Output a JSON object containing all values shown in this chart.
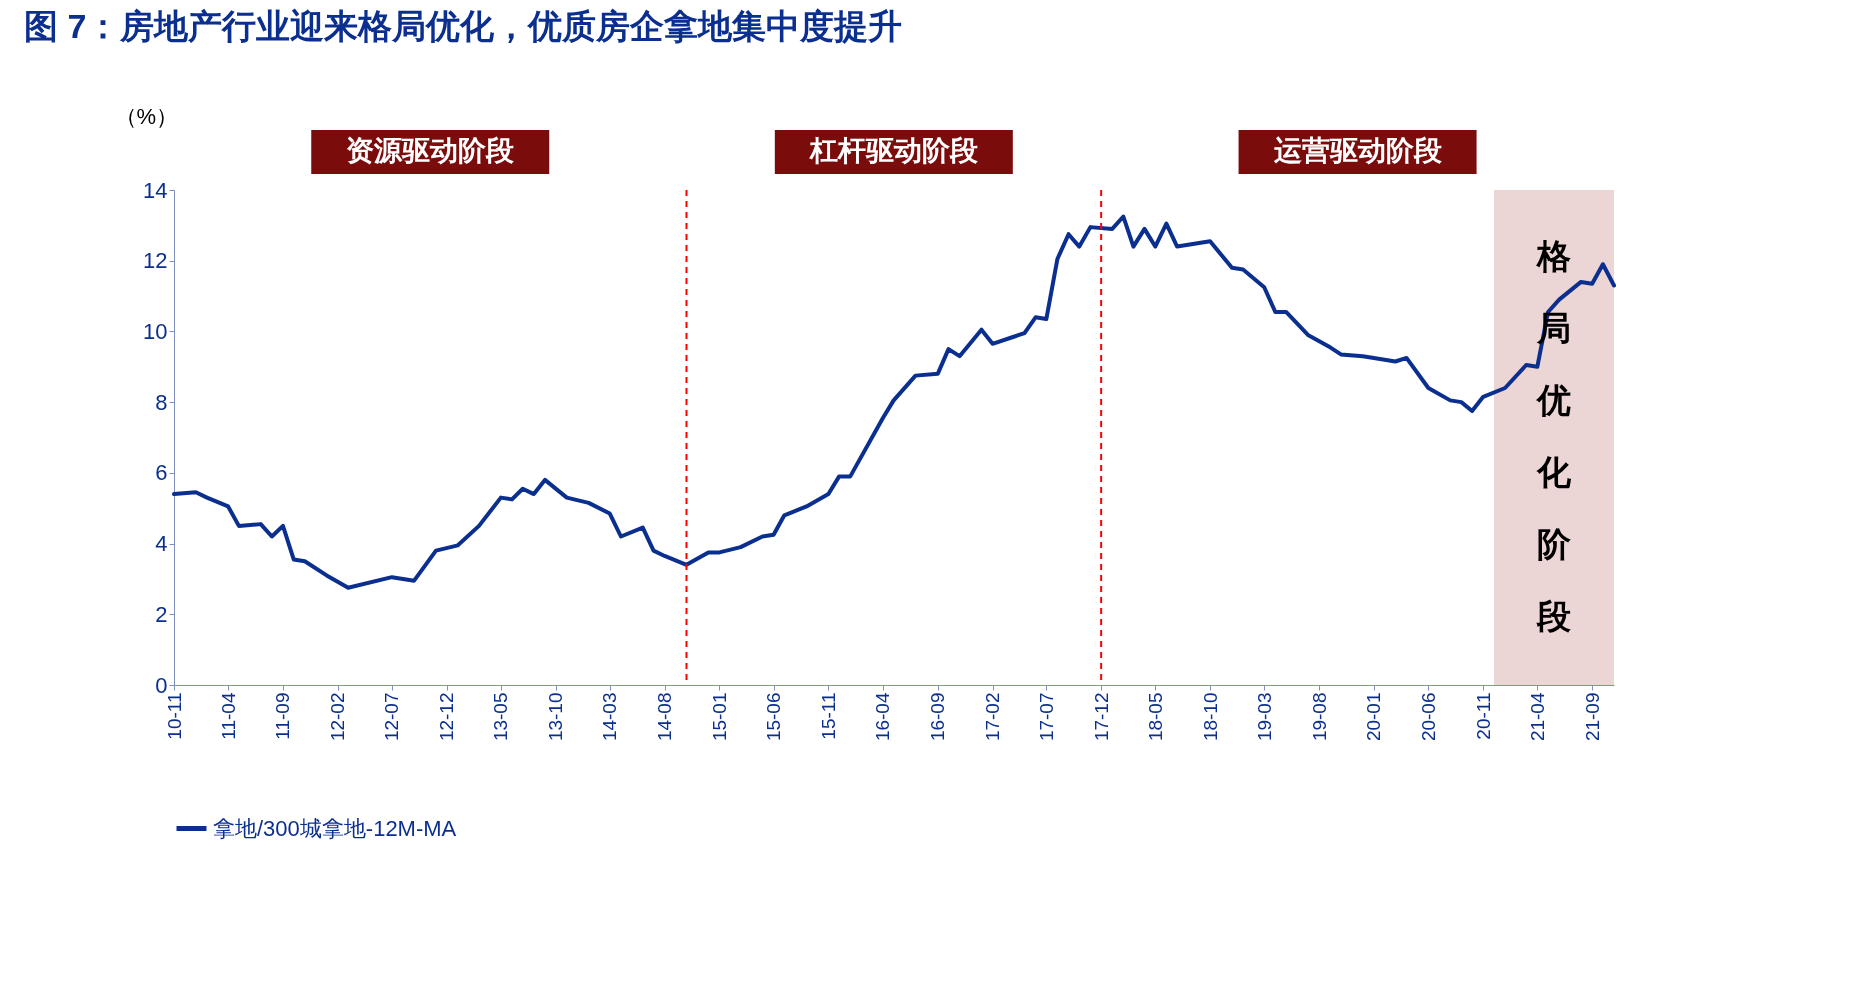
{
  "chart_data": {
    "type": "line",
    "title": "图 7：房地产行业迎来格局优化，优质房企拿地集中度提升",
    "ylabel": "（%）",
    "x": [
      "2010-11",
      "2011-01",
      "2011-02",
      "2011-04",
      "2011-05",
      "2011-07",
      "2011-08",
      "2011-09",
      "2011-10",
      "2011-11",
      "2012-01",
      "2012-03",
      "2012-07",
      "2012-08",
      "2012-09",
      "2012-11",
      "2013-01",
      "2013-03",
      "2013-05",
      "2013-06",
      "2013-07",
      "2013-08",
      "2013-09",
      "2013-11",
      "2014-01",
      "2014-03",
      "2014-04",
      "2014-06",
      "2014-07",
      "2014-08",
      "2014-10",
      "2014-12",
      "2015-01",
      "2015-03",
      "2015-05",
      "2015-06",
      "2015-07",
      "2015-09",
      "2015-11",
      "2015-12",
      "2016-01",
      "2016-04",
      "2016-05",
      "2016-07",
      "2016-09",
      "2016-10",
      "2016-11",
      "2017-01",
      "2017-02",
      "2017-04",
      "2017-05",
      "2017-06",
      "2017-07",
      "2017-08",
      "2017-09",
      "2017-10",
      "2017-11",
      "2018-01",
      "2018-02",
      "2018-03",
      "2018-04",
      "2018-05",
      "2018-06",
      "2018-07",
      "2018-10",
      "2018-12",
      "2019-01",
      "2019-03",
      "2019-04",
      "2019-05",
      "2019-07",
      "2019-09",
      "2019-10",
      "2019-12",
      "2020-01",
      "2020-03",
      "2020-04",
      "2020-06",
      "2020-08",
      "2020-09",
      "2020-10",
      "2020-11",
      "2021-01",
      "2021-03",
      "2021-04",
      "2021-05",
      "2021-06",
      "2021-08",
      "2021-09",
      "2021-10",
      "2021-11"
    ],
    "series": [
      {
        "name": "拿地/300城拿地-12M-MA",
        "color": "#0b2f8f",
        "values": [
          5.4,
          5.45,
          5.3,
          5.05,
          4.5,
          4.55,
          4.2,
          4.5,
          3.55,
          3.5,
          3.1,
          2.75,
          3.05,
          3.0,
          2.95,
          3.8,
          3.95,
          4.5,
          5.3,
          5.25,
          5.55,
          5.4,
          5.8,
          5.3,
          5.15,
          4.85,
          4.2,
          4.45,
          3.8,
          3.65,
          3.4,
          3.75,
          3.75,
          3.9,
          4.2,
          4.25,
          4.8,
          5.05,
          5.4,
          5.9,
          5.9,
          7.55,
          8.05,
          8.75,
          8.8,
          9.5,
          9.3,
          10.05,
          9.65,
          9.85,
          9.95,
          10.4,
          10.35,
          12.05,
          12.75,
          12.4,
          12.95,
          12.9,
          13.25,
          12.4,
          12.9,
          12.4,
          13.05,
          12.4,
          12.55,
          11.8,
          11.75,
          11.25,
          10.55,
          10.55,
          9.9,
          9.55,
          9.35,
          9.3,
          9.25,
          9.15,
          9.25,
          8.4,
          8.05,
          8.0,
          7.75,
          8.15,
          8.4,
          9.05,
          9.0,
          10.55,
          10.9,
          11.4,
          11.35,
          11.9,
          11.3
        ]
      }
    ],
    "xlim": [
      "2010-11",
      "2021-11"
    ],
    "xticks": [
      {
        "value": "2010-11",
        "label": "10-11"
      },
      {
        "value": "2011-04",
        "label": "11-04"
      },
      {
        "value": "2011-09",
        "label": "11-09"
      },
      {
        "value": "2012-02",
        "label": "12-02"
      },
      {
        "value": "2012-07",
        "label": "12-07"
      },
      {
        "value": "2012-12",
        "label": "12-12"
      },
      {
        "value": "2013-05",
        "label": "13-05"
      },
      {
        "value": "2013-10",
        "label": "13-10"
      },
      {
        "value": "2014-03",
        "label": "14-03"
      },
      {
        "value": "2014-08",
        "label": "14-08"
      },
      {
        "value": "2015-01",
        "label": "15-01"
      },
      {
        "value": "2015-06",
        "label": "15-06"
      },
      {
        "value": "2015-11",
        "label": "15-11"
      },
      {
        "value": "2016-04",
        "label": "16-04"
      },
      {
        "value": "2016-09",
        "label": "16-09"
      },
      {
        "value": "2017-02",
        "label": "17-02"
      },
      {
        "value": "2017-07",
        "label": "17-07"
      },
      {
        "value": "2017-12",
        "label": "17-12"
      },
      {
        "value": "2018-05",
        "label": "18-05"
      },
      {
        "value": "2018-10",
        "label": "18-10"
      },
      {
        "value": "2019-03",
        "label": "19-03"
      },
      {
        "value": "2019-08",
        "label": "19-08"
      },
      {
        "value": "2020-01",
        "label": "20-01"
      },
      {
        "value": "2020-06",
        "label": "20-06"
      },
      {
        "value": "2020-11",
        "label": "20-11"
      },
      {
        "value": "2021-04",
        "label": "21-04"
      },
      {
        "value": "2021-09",
        "label": "21-09"
      }
    ],
    "ylim": [
      0,
      14
    ],
    "yticks": [
      0,
      2,
      4,
      6,
      8,
      10,
      12,
      14
    ],
    "ref_lines": [
      {
        "axis": "x",
        "value": "2014-10",
        "color": "#ff0000",
        "line_style": "dashed"
      },
      {
        "axis": "x",
        "value": "2017-12",
        "color": "#ff0000",
        "line_style": "dashed"
      }
    ],
    "bands": [
      {
        "axis": "x",
        "from": "2020-12",
        "to": "2021-11",
        "label": "格局优化阶段",
        "color": "#ecd5d5"
      }
    ],
    "annotations": [
      "资源驱动阶段",
      "杠杆驱动阶段",
      "运营驱动阶段"
    ],
    "legend": "bottom",
    "line_style": "solid"
  }
}
